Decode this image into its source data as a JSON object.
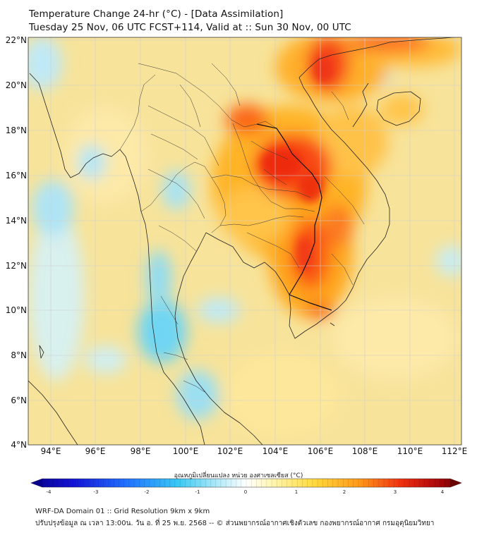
{
  "header": {
    "title_line1": "Temperature Change 24-hr (°C) - [Data Assimilation]",
    "title_line2": "Tuesday 25 Nov, 06 UTC FCST+114, Valid at :: Sun 30 Nov, 00 UTC"
  },
  "map": {
    "lat_labels": [
      "22°N",
      "20°N",
      "18°N",
      "16°N",
      "14°N",
      "12°N",
      "10°N",
      "8°N",
      "6°N",
      "4°N"
    ],
    "lon_labels": [
      "94°E",
      "96°E",
      "98°E",
      "100°E",
      "102°E",
      "104°E",
      "106°E",
      "108°E",
      "110°E",
      "112°E"
    ],
    "lat_range": [
      4,
      22
    ],
    "lon_range": [
      93,
      113
    ],
    "sea_color": "#f7e5a0"
  },
  "colorbar": {
    "label": "อุณหภูมิเปลี่ยนแปลง หน่วย องศาเซลเซียส (°C)",
    "ticks": [
      "-4",
      "-3",
      "-2",
      "-1",
      "0",
      "1",
      "2",
      "3",
      "4"
    ],
    "range": [
      -4,
      4
    ]
  },
  "footer": {
    "line1": "WRF-DA Domain 01 :: Grid Resolution 9km x 9km",
    "line2": "ปรับปรุงข้อมูล ณ เวลา 13:00น. วัน อ. ที่ 25 พ.ย. 2568 -- © ส่วนพยากรณ์อากาศเชิงตัวเลข กองพยากรณ์อากาศ กรมอุตุนิยมวิทยา"
  }
}
